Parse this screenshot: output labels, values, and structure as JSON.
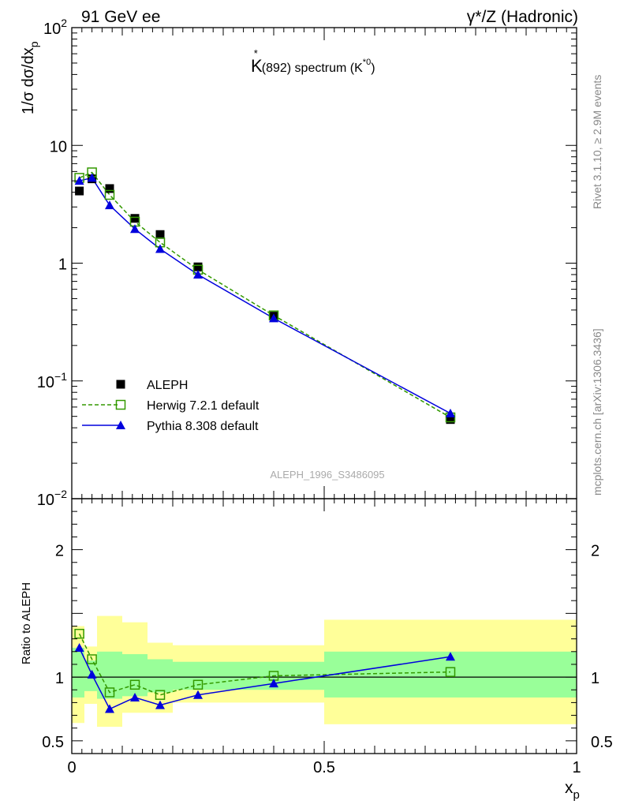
{
  "header": {
    "left": "91 GeV ee",
    "right": "γ*/Z (Hadronic)"
  },
  "title": {
    "prefix": "K",
    "star": "*",
    "mid": "(892) spectrum (K",
    "sup": "*0",
    "end": ")"
  },
  "side_labels": {
    "rivet": "Rivet 3.1.10, ≥ 2.9M events",
    "mcplots": "mcplots.cern.ch [arXiv:1306.3436]"
  },
  "watermark": "ALEPH_1996_S3486095",
  "colors": {
    "data": "#000000",
    "herwig": "#339900",
    "pythia": "#0000dd",
    "band_inner": "#99ff99",
    "band_outer": "#ffff99"
  },
  "chart_data": [
    {
      "type": "scatter",
      "panel": "main",
      "ylabel": "1/σ dσ/dx_p",
      "xlim": [
        0,
        1
      ],
      "ylim": [
        0.01,
        100
      ],
      "yscale": "log",
      "yticks": [
        {
          "v": 0.01,
          "label": "10",
          "exp": "−2"
        },
        {
          "v": 0.1,
          "label": "10",
          "exp": "−1"
        },
        {
          "v": 1,
          "label": "1",
          "exp": ""
        },
        {
          "v": 10,
          "label": "10",
          "exp": ""
        },
        {
          "v": 100,
          "label": "10",
          "exp": "2"
        }
      ],
      "legend_position": "bottom-left",
      "series": [
        {
          "name": "ALEPH",
          "style": "data",
          "x": [
            0.015,
            0.04,
            0.075,
            0.125,
            0.175,
            0.25,
            0.4,
            0.75
          ],
          "xerr": [
            0.01,
            0.015,
            0.025,
            0.025,
            0.025,
            0.05,
            0.1,
            0.25
          ],
          "y": [
            4.1,
            5.2,
            4.3,
            2.4,
            1.75,
            0.93,
            0.355,
            0.047
          ]
        },
        {
          "name": "Herwig 7.2.1 default",
          "style": "herwig",
          "x": [
            0.015,
            0.04,
            0.075,
            0.125,
            0.175,
            0.25,
            0.4,
            0.75
          ],
          "y": [
            5.3,
            5.9,
            3.8,
            2.25,
            1.5,
            0.88,
            0.36,
            0.049
          ]
        },
        {
          "name": "Pythia 8.308 default",
          "style": "pythia",
          "x": [
            0.015,
            0.04,
            0.075,
            0.125,
            0.175,
            0.25,
            0.4,
            0.75
          ],
          "y": [
            5.0,
            5.3,
            3.1,
            1.95,
            1.32,
            0.8,
            0.34,
            0.053
          ]
        }
      ]
    },
    {
      "type": "line",
      "panel": "ratio",
      "ylabel": "Ratio to ALEPH",
      "xlabel": "x_p",
      "xlim": [
        0,
        1
      ],
      "ylim": [
        0.4,
        2.4
      ],
      "yticks": [
        {
          "v": 0.5,
          "label": "0.5"
        },
        {
          "v": 1,
          "label": "1"
        },
        {
          "v": 2,
          "label": "2"
        }
      ],
      "xticks": [
        {
          "v": 0,
          "label": "0"
        },
        {
          "v": 0.5,
          "label": "0.5"
        },
        {
          "v": 1,
          "label": "1"
        }
      ],
      "bands": [
        {
          "x0": 0.0,
          "x1": 0.025,
          "inner": [
            0.84,
            1.23
          ],
          "outer": [
            0.64,
            1.4
          ]
        },
        {
          "x0": 0.025,
          "x1": 0.05,
          "inner": [
            0.89,
            1.13
          ],
          "outer": [
            0.79,
            1.24
          ]
        },
        {
          "x0": 0.05,
          "x1": 0.1,
          "inner": [
            0.83,
            1.2
          ],
          "outer": [
            0.61,
            1.48
          ]
        },
        {
          "x0": 0.1,
          "x1": 0.15,
          "inner": [
            0.85,
            1.18
          ],
          "outer": [
            0.72,
            1.43
          ]
        },
        {
          "x0": 0.15,
          "x1": 0.2,
          "inner": [
            0.88,
            1.14
          ],
          "outer": [
            0.72,
            1.27
          ]
        },
        {
          "x0": 0.2,
          "x1": 0.3,
          "inner": [
            0.9,
            1.12
          ],
          "outer": [
            0.8,
            1.25
          ]
        },
        {
          "x0": 0.3,
          "x1": 0.5,
          "inner": [
            0.9,
            1.12
          ],
          "outer": [
            0.8,
            1.25
          ]
        },
        {
          "x0": 0.5,
          "x1": 1.0,
          "inner": [
            0.84,
            1.2
          ],
          "outer": [
            0.63,
            1.45
          ]
        }
      ],
      "series": [
        {
          "name": "Herwig 7.2.1 default",
          "style": "herwig",
          "x": [
            0.015,
            0.04,
            0.075,
            0.125,
            0.175,
            0.25,
            0.4,
            0.75
          ],
          "y": [
            1.34,
            1.14,
            0.88,
            0.94,
            0.86,
            0.94,
            1.01,
            1.04
          ]
        },
        {
          "name": "Pythia 8.308 default",
          "style": "pythia",
          "x": [
            0.015,
            0.04,
            0.075,
            0.125,
            0.175,
            0.25,
            0.4,
            0.75
          ],
          "y": [
            1.23,
            1.02,
            0.75,
            0.84,
            0.78,
            0.86,
            0.95,
            1.16
          ]
        }
      ]
    }
  ]
}
